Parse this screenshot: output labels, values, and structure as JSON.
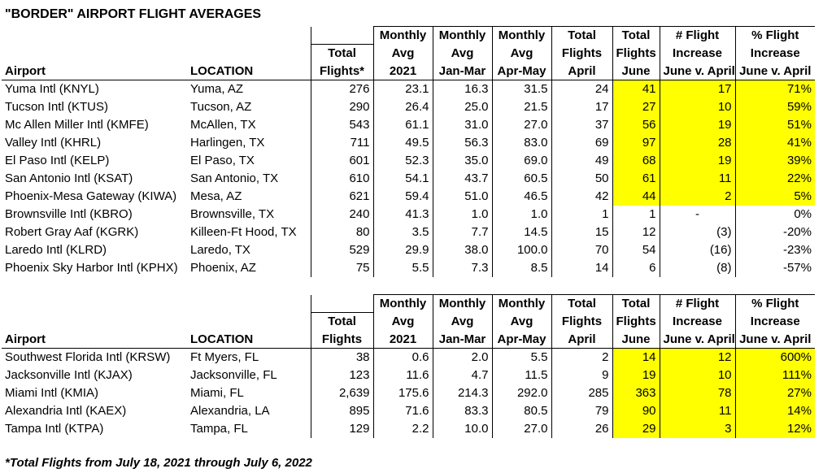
{
  "title": "\"BORDER\" AIRPORT FLIGHT AVERAGES",
  "footnote": "*Total Flights from July 18, 2021 through July 6, 2022",
  "highlight_color": "#ffff00",
  "table1": {
    "headers": {
      "airport": "Airport",
      "location": "LOCATION",
      "total": [
        "",
        "Total",
        "Flights*"
      ],
      "avg2021": [
        "Monthly",
        "Avg",
        "2021"
      ],
      "janmar": [
        "Monthly",
        "Avg",
        "Jan-Mar"
      ],
      "aprmay": [
        "Monthly",
        "Avg",
        "Apr-May"
      ],
      "april": [
        "Total",
        "Flights",
        "April"
      ],
      "june": [
        "Total",
        "Flights",
        "June"
      ],
      "incr": [
        "# Flight",
        "Increase",
        "June v. April"
      ],
      "pct": [
        "% Flight",
        "Increase",
        "June v. April"
      ]
    },
    "rows": [
      {
        "airport": "Yuma Intl (KNYL)",
        "location": "Yuma, AZ",
        "total": "276",
        "avg2021": "23.1",
        "janmar": "16.3",
        "aprmay": "31.5",
        "april": "24",
        "june": "41",
        "incr": "17",
        "pct": "71%"
      },
      {
        "airport": "Tucson Intl (KTUS)",
        "location": "Tucson, AZ",
        "total": "290",
        "avg2021": "26.4",
        "janmar": "25.0",
        "aprmay": "21.5",
        "april": "17",
        "june": "27",
        "incr": "10",
        "pct": "59%"
      },
      {
        "airport": "Mc Allen Miller Intl (KMFE)",
        "location": "McAllen, TX",
        "total": "543",
        "avg2021": "61.1",
        "janmar": "31.0",
        "aprmay": "27.0",
        "april": "37",
        "june": "56",
        "incr": "19",
        "pct": "51%"
      },
      {
        "airport": "Valley Intl (KHRL)",
        "location": "Harlingen, TX",
        "total": "711",
        "avg2021": "49.5",
        "janmar": "56.3",
        "aprmay": "83.0",
        "april": "69",
        "june": "97",
        "incr": "28",
        "pct": "41%"
      },
      {
        "airport": "El Paso Intl (KELP)",
        "location": "El Paso, TX",
        "total": "601",
        "avg2021": "52.3",
        "janmar": "35.0",
        "aprmay": "69.0",
        "april": "49",
        "june": "68",
        "incr": "19",
        "pct": "39%"
      },
      {
        "airport": "San Antonio Intl (KSAT)",
        "location": "San Antonio, TX",
        "total": "610",
        "avg2021": "54.1",
        "janmar": "43.7",
        "aprmay": "60.5",
        "april": "50",
        "june": "61",
        "incr": "11",
        "pct": "22%"
      },
      {
        "airport": "Phoenix-Mesa Gateway (KIWA)",
        "location": "Mesa, AZ",
        "total": "621",
        "avg2021": "59.4",
        "janmar": "51.0",
        "aprmay": "46.5",
        "april": "42",
        "june": "44",
        "incr": "2",
        "pct": "5%"
      },
      {
        "airport": "Brownsville Intl (KBRO)",
        "location": "Brownsville, TX",
        "total": "240",
        "avg2021": "41.3",
        "janmar": "1.0",
        "aprmay": "1.0",
        "april": "1",
        "june": "1",
        "incr": "-",
        "pct": "0%"
      },
      {
        "airport": "Robert Gray Aaf (KGRK)",
        "location": "Killeen-Ft Hood, TX",
        "total": "80",
        "avg2021": "3.5",
        "janmar": "7.7",
        "aprmay": "14.5",
        "april": "15",
        "june": "12",
        "incr": "(3)",
        "pct": "-20%"
      },
      {
        "airport": "Laredo Intl (KLRD)",
        "location": "Laredo, TX",
        "total": "529",
        "avg2021": "29.9",
        "janmar": "38.0",
        "aprmay": "100.0",
        "april": "70",
        "june": "54",
        "incr": "(16)",
        "pct": "-23%"
      },
      {
        "airport": "Phoenix Sky Harbor Intl (KPHX)",
        "location": "Phoenix, AZ",
        "total": "75",
        "avg2021": "5.5",
        "janmar": "7.3",
        "aprmay": "8.5",
        "april": "14",
        "june": "6",
        "incr": "(8)",
        "pct": "-57%"
      }
    ]
  },
  "table2": {
    "headers": {
      "airport": "Airport",
      "location": "LOCATION",
      "total": [
        "",
        "Total",
        "Flights"
      ],
      "avg2021": [
        "Monthly",
        "Avg",
        "2021"
      ],
      "janmar": [
        "Monthly",
        "Avg",
        "Jan-Mar"
      ],
      "aprmay": [
        "Monthly",
        "Avg",
        "Apr-May"
      ],
      "april": [
        "Total",
        "Flights",
        "April"
      ],
      "june": [
        "Total",
        "Flights",
        "June"
      ],
      "incr": [
        "# Flight",
        "Increase",
        "June v. April"
      ],
      "pct": [
        "% Flight",
        "Increase",
        "June v. April"
      ]
    },
    "rows": [
      {
        "airport": "Southwest Florida Intl (KRSW)",
        "location": "Ft Myers, FL",
        "total": "38",
        "avg2021": "0.6",
        "janmar": "2.0",
        "aprmay": "5.5",
        "april": "2",
        "june": "14",
        "incr": "12",
        "pct": "600%"
      },
      {
        "airport": "Jacksonville Intl (KJAX)",
        "location": "Jacksonville, FL",
        "total": "123",
        "avg2021": "11.6",
        "janmar": "4.7",
        "aprmay": "11.5",
        "april": "9",
        "june": "19",
        "incr": "10",
        "pct": "111%"
      },
      {
        "airport": "Miami Intl (KMIA)",
        "location": "Miami, FL",
        "total": "2,639",
        "avg2021": "175.6",
        "janmar": "214.3",
        "aprmay": "292.0",
        "april": "285",
        "june": "363",
        "incr": "78",
        "pct": "27%"
      },
      {
        "airport": "Alexandria Intl (KAEX)",
        "location": "Alexandria, LA",
        "total": "895",
        "avg2021": "71.6",
        "janmar": "83.3",
        "aprmay": "80.5",
        "april": "79",
        "june": "90",
        "incr": "11",
        "pct": "14%"
      },
      {
        "airport": "Tampa Intl (KTPA)",
        "location": "Tampa, FL",
        "total": "129",
        "avg2021": "2.2",
        "janmar": "10.0",
        "aprmay": "27.0",
        "april": "26",
        "june": "29",
        "incr": "3",
        "pct": "12%"
      }
    ]
  }
}
